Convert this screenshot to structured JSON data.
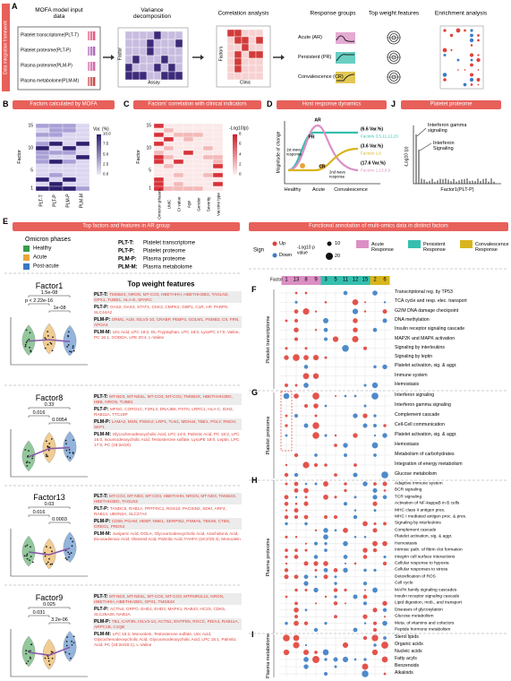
{
  "panel_a": {
    "letter": "A",
    "side_label": "Data integration framework",
    "steps": [
      "MOFA model input data",
      "Variance decomposition",
      "Correlation analysis",
      "Response groups",
      "Top weight features",
      "Enrichment analysis"
    ],
    "inputs": [
      "Platelet transcriptome(PLT-T)",
      "Platelet proteome(PLT-P)",
      "Plasma proteome(PLM-P)",
      "Plasma metabolome(PLM-M)"
    ],
    "axis_factor": "Factor",
    "axis_assay": "Assay",
    "axis_factors": "Factors",
    "axis_clinic": "Clinic",
    "groups": [
      "Acute (AR)",
      "Persistent (PR)",
      "Convalescence (CR)"
    ]
  },
  "panel_b": {
    "letter": "B",
    "title": "Factors calculated by MOFA",
    "y_label": "Factor",
    "y_ticks": [
      "15",
      "10",
      "5",
      "1"
    ],
    "x_labels": [
      "PLT-T",
      "PLT-P",
      "PLM-P",
      "PLM-M"
    ],
    "legend_title": "Var. (%)",
    "legend_ticks": [
      "10.0",
      "7.5",
      "5.0",
      "2.5",
      "0.0"
    ]
  },
  "panel_c": {
    "letter": "C",
    "title": "Factors' correlation with clinical indicators",
    "y_label": "Factor",
    "y_ticks": [
      "15",
      "10",
      "5",
      "1"
    ],
    "x_labels": [
      "Omicron phases",
      "UMC",
      "Ct value",
      "Age",
      "Gender",
      "Severity",
      "Vaccine type"
    ],
    "legend_title": "-Log10(p)",
    "legend_ticks": [
      "8",
      "6",
      "4",
      "2",
      "0"
    ]
  },
  "panel_d": {
    "letter": "D",
    "title": "Host response dynamics",
    "y_label": "Magnitude of change",
    "x_labels": [
      "Healthy",
      "Acute",
      "Convalescence"
    ],
    "curve_labels": [
      "PR",
      "AR",
      "CR"
    ],
    "wave1": "1st wave response",
    "wave2": "2nd wave response",
    "notes": [
      {
        "var": "(6.6 Var.%)",
        "factors": "Factors 3,5,11,12,15"
      },
      {
        "var": "(3.6 Var.%)",
        "factors": "Factors 2,6"
      },
      {
        "var": "(17.6 Var.%)",
        "factors": "Factors 1,13,8,9"
      }
    ]
  },
  "panel_j": {
    "letter": "J",
    "title": "Platelet proteome",
    "annot1": "Interferon gamma signaling",
    "annot2": "Interferon Signaling",
    "y_label": "-Log10 (p)",
    "x_label": "Factor1(PLT-P)"
  },
  "panel_e": {
    "letter": "E",
    "title": "Top factors and features in AR group",
    "legend_title": "Omicron phases",
    "phases": [
      "Healthy",
      "Acute",
      "Post-acute"
    ],
    "abbreviations": [
      {
        "abbr": "PLT-T:",
        "full": "Platelet transcriptome"
      },
      {
        "abbr": "PLT-P:",
        "full": "Platelet proteome"
      },
      {
        "abbr": "PLM-P:",
        "full": "Plasma proteome"
      },
      {
        "abbr": "PLM-M:",
        "full": "Plasma metabolome"
      }
    ],
    "features_header": "Top weight features",
    "factors": [
      {
        "name": "Factor1",
        "pvalues": [
          "1.5e-08",
          "p < 2.22e-16",
          "1e-08"
        ],
        "features": [
          {
            "assay": "PLT-T:",
            "genes": "TMSB4X, NRGN, MT-CO3, HBETHHH, HBETHH2BG, TAGLN2, GPX1, TUBB1, HLA-E, SPARC"
          },
          {
            "assay": "PLT-P:",
            "genes": "OAS2, OAS3, STAT1, CKK2, CMPK2, GBP1, C1R, HP, PARP9, SLC44A2"
          },
          {
            "assay": "PLM-P:",
            "genes": "ORM1, AU8, IGLV3-10, CRABP, PEBP4, GOLM1, PSMB3, C9, FRN, APOA4"
          },
          {
            "assay": "PLM-M:",
            "genes": "Uric Acid, LPC 18:2, DL-Tryptophan, LPC 18:0, LysoPC 17:0, Valine, PC 16:1, GODDA, LPE 20:4, L-Valine"
          }
        ]
      },
      {
        "name": "Factor8",
        "pvalues": [
          "0.33",
          "0.016",
          "0.0054"
        ],
        "features": [
          {
            "assay": "PLT-T:",
            "genes": "MT-ND3, MT-ND4L, MT-CO3, MT-CO2, TMSB4X, HBETHHH2BG, HBB, NRGN, TUBB1"
          },
          {
            "assay": "PLT-P:",
            "genes": "MFNG, CORO1C, F2RL3, DNAJB6, PXTN, LRRC1, HLA-C, IDH2, RAB11A, TTC19P"
          },
          {
            "assay": "PLM-P:",
            "genes": "LAMA2, MSN, PSMA2, LRP1, TLN1, MDH44, TBE1, PGLY, RNDH, SKP1"
          },
          {
            "assay": "PLM-M:",
            "genes": "Glycochenodeoxycholic Acid, LPC 14:0, Palmitic Acid, PC 18:2, LPC 16:0, Isoursodeoxycholic Acid, Testosterone sulfate, LysoPE 18:0, Leptin, LPC 17:0, PC (18:2e/20)"
          }
        ]
      },
      {
        "name": "Factor13",
        "pvalues": [
          "0.03",
          "0.016",
          "0.0003"
        ],
        "features": [
          {
            "assay": "PLT-T:",
            "genes": "MT-CO2, MT-ND3, MT-CO3, HBETHHH, NRGN, MT-ND3, TMSB4X, HBETHH2BG, TAGLN2"
          },
          {
            "assay": "PLT-P:",
            "genes": "TANDC5, RAB1A, PRTFDC1, RGS10, PACSIN2, SDKI, ARF4, RAB13, UBXN2A, SLC27A4"
          },
          {
            "assay": "PLM-P:",
            "genes": "CD59, PGAM, HEBP, NNE1, SERPIN1, PSMA6, TBK08, CTBS, CREG1, PRDX2"
          },
          {
            "assay": "PLM-M:",
            "genes": "Juniperic Acid, DOLA, Glycoursodeoxycholic Acid, Arachidonic Acid, Eicosadienoic Acid, Oleamid Acid, Palmitic Acid, FAHFA (18:2/20:4), Monoolein"
          }
        ]
      },
      {
        "name": "Factor9",
        "pvalues": [
          "0.025",
          "0.031",
          "3.2e-06"
        ],
        "features": [
          {
            "assay": "PLT-T:",
            "genes": "MT-ND3, MT-ND4L, MT-CO2, MT-CO3, MTRNR2L12, NRGN, HBETHHH, HBETHH2BG, GPX1, TMSB4X"
          },
          {
            "assay": "PLT-P:",
            "genes": "ACTN4, GRPO, EHD1, EHD3, MAPK1, RAB43, HC2S, CDK5, SLC25A26, NAB1A"
          },
          {
            "assay": "PLM-P:",
            "genes": "TB1, CAP3N, IGLV3-14, ACTN1, ENTPD5, RGCC, PDIA4, RAB11A, ARPC1B, C1QB"
          },
          {
            "assay": "PLM-M:",
            "genes": "LPC 16:2, Monoolein, Testosterone sulfate, Uric Acid, Glycochenodeoxycholic Acid, Glycoursodeoxycholic Acid, LPC 15:1, Palmitic Acid, PC (18:2e/20:1), L-Valine"
          }
        ]
      }
    ]
  },
  "panel_fi": {
    "title": "Functional annotation of multi-omics data in distinct factors",
    "legend": {
      "sign": "Sign",
      "up": "Up",
      "down": "Down",
      "size_title": "-Log10 p value",
      "sizes": [
        "10",
        "20"
      ],
      "responses": [
        "Acute Response",
        "Persistent Response",
        "Convalescence Response"
      ]
    },
    "factor_label": "Factor",
    "columns": {
      "acute": [
        "1",
        "13",
        "8",
        "9"
      ],
      "persistent": [
        "3",
        "5",
        "11",
        "12",
        "15"
      ],
      "convalescence": [
        "2",
        "6"
      ]
    },
    "sections": [
      {
        "letter": "F",
        "name": "Platelet transcriptome",
        "pathways": [
          "Transcriptional reg. by TP53",
          "TCA cycle and resp. elec. transport",
          "G2/M DNA damage checkpoint",
          "DNA methylation",
          "Insulin receptor signaling cascade",
          "MAP2K and MAPK activation",
          "Signaling by interleukins",
          "Signaling by leptin",
          "Platelet activation, sig. & aggr.",
          "Immune system",
          "Hemostasis"
        ]
      },
      {
        "letter": "G",
        "name": "Platelet proteome",
        "pathways": [
          "Interferon signaling",
          "Interferon gamma signaling",
          "Complement cascade",
          "Cell-Cell communication",
          "Platelet activation, sig. & aggr.",
          "Hemostasis",
          "Metabolism of carbohydrates",
          "Integration of energy metabolism",
          "Glucose metabolism"
        ]
      },
      {
        "letter": "H",
        "name": "Plasma proteome",
        "pathways": [
          "Adaptive immune system",
          "BCR signaling",
          "TCR signaling",
          "Activation of NF-kappaB in B cells",
          "MHC class II antigen pres.",
          "MHC I mediated antigen proc. & pres.",
          "Signaling by interleukins",
          "Complement cascade",
          "Platelet activation, sig. & aggr.",
          "Hemostasis",
          "Intrinsic path. of fibrin clot formation",
          "Integrin cell surface interactions",
          "Cellular response to hypoxia",
          "Cellular responses to stress",
          "Detoxification of ROS",
          "Cell cycle",
          "MAPK family signaling cascades",
          "Insulin receptor signaling cascade",
          "Lipid digestion, mob., and transport",
          "Diseases of glycosylation",
          "Glucose metabolism",
          "Meta. of vitamins and cofactors",
          "Peptide hormone metabolism"
        ]
      },
      {
        "letter": "I",
        "name": "Plasma metabolome",
        "pathways": [
          "Sterol lipids",
          "Organic acids",
          "Nucleic acids",
          "Fatty acyls",
          "Benzenoids",
          "Alkaloids"
        ]
      }
    ]
  }
}
